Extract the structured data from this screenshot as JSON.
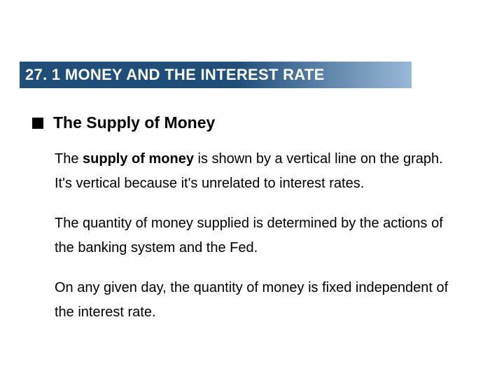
{
  "header": {
    "text": "27. 1  MONEY AND THE INTEREST RATE",
    "gradient_start": "#1f4e79",
    "gradient_end": "#9ab8d8",
    "text_color": "#ffffff",
    "fontsize": 22
  },
  "bullet": {
    "title": "The Supply of Money",
    "square_color": "#000000",
    "title_fontsize": 23
  },
  "paragraphs": [
    {
      "runs": [
        {
          "text": "The ",
          "bold": false
        },
        {
          "text": "supply of money",
          "bold": true
        },
        {
          "text": " is shown by a vertical line on the graph.  It's vertical because it's unrelated to interest rates.",
          "bold": false
        }
      ]
    },
    {
      "runs": [
        {
          "text": "The quantity of money supplied is determined by the actions of the banking system and the Fed.",
          "bold": false
        }
      ]
    },
    {
      "runs": [
        {
          "text": "On any given day, the quantity of money is fixed independent of the interest rate.",
          "bold": false
        }
      ]
    }
  ],
  "body_fontsize": 20,
  "body_lineheight": 1.75,
  "background_color": "#ffffff"
}
